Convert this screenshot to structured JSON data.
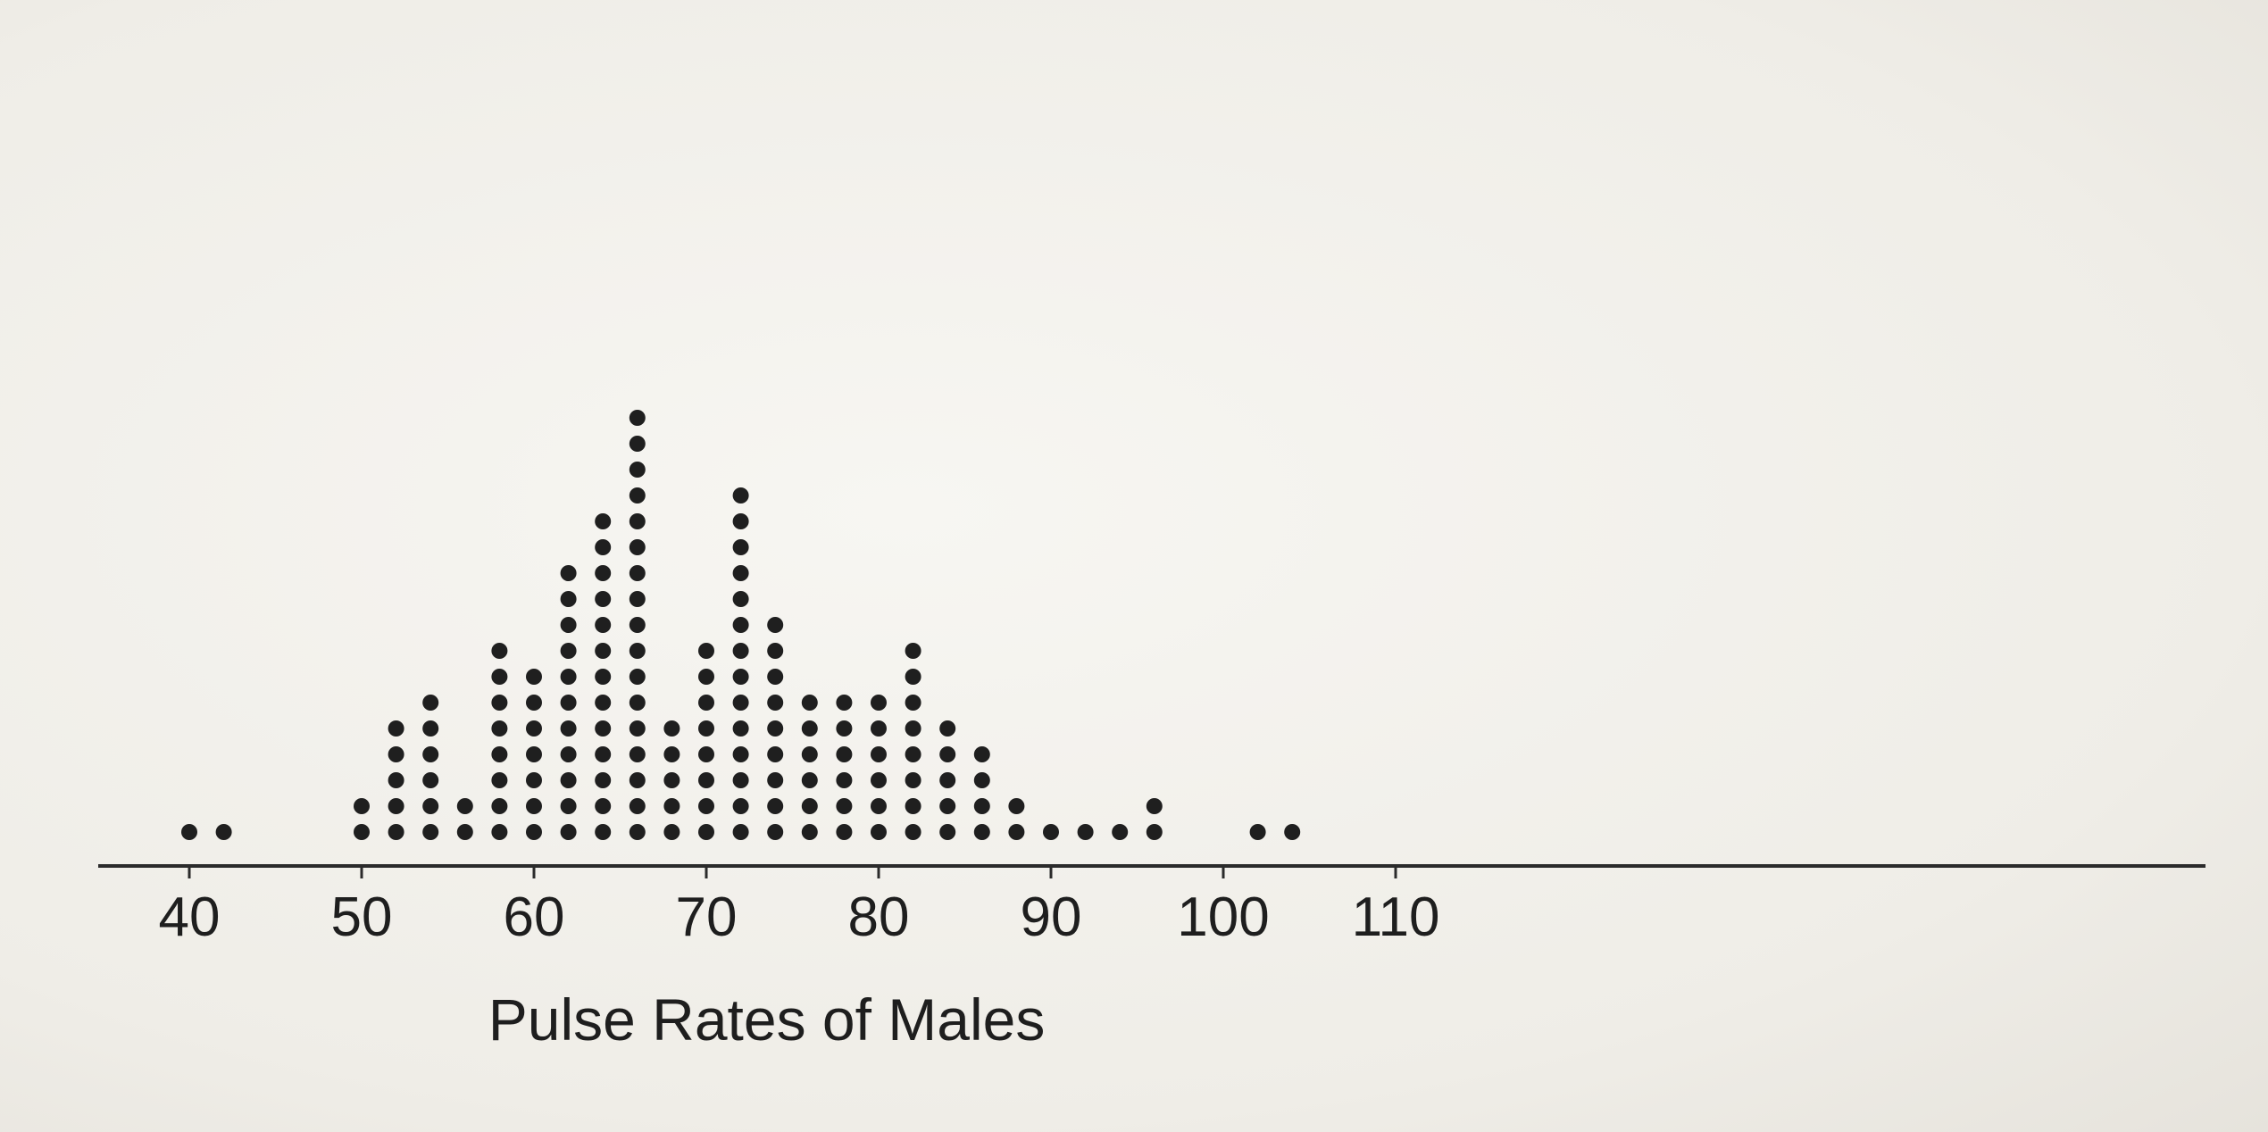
{
  "chart_data": {
    "type": "scatter",
    "chart_subtype": "dot-plot",
    "title": "",
    "xlabel": "Pulse Rates of Males",
    "ylabel": "",
    "xlim": [
      40,
      110
    ],
    "x_ticks": [
      40,
      50,
      60,
      70,
      80,
      90,
      100,
      110
    ],
    "x_tick_labels": [
      "40",
      "50",
      "60",
      "70",
      "80",
      "90",
      "100",
      "110"
    ],
    "grid": false,
    "legend": "none",
    "dot_color": "#1f1f1f",
    "points": [
      {
        "x": 40,
        "count": 1
      },
      {
        "x": 42,
        "count": 1
      },
      {
        "x": 50,
        "count": 2
      },
      {
        "x": 52,
        "count": 5
      },
      {
        "x": 54,
        "count": 6
      },
      {
        "x": 56,
        "count": 2
      },
      {
        "x": 58,
        "count": 8
      },
      {
        "x": 60,
        "count": 7
      },
      {
        "x": 62,
        "count": 11
      },
      {
        "x": 64,
        "count": 13
      },
      {
        "x": 66,
        "count": 17
      },
      {
        "x": 68,
        "count": 5
      },
      {
        "x": 70,
        "count": 8
      },
      {
        "x": 72,
        "count": 14
      },
      {
        "x": 74,
        "count": 9
      },
      {
        "x": 76,
        "count": 6
      },
      {
        "x": 78,
        "count": 6
      },
      {
        "x": 80,
        "count": 6
      },
      {
        "x": 82,
        "count": 8
      },
      {
        "x": 84,
        "count": 5
      },
      {
        "x": 86,
        "count": 4
      },
      {
        "x": 88,
        "count": 2
      },
      {
        "x": 90,
        "count": 1
      },
      {
        "x": 92,
        "count": 1
      },
      {
        "x": 94,
        "count": 1
      },
      {
        "x": 96,
        "count": 2
      },
      {
        "x": 102,
        "count": 1
      },
      {
        "x": 104,
        "count": 1
      }
    ]
  }
}
